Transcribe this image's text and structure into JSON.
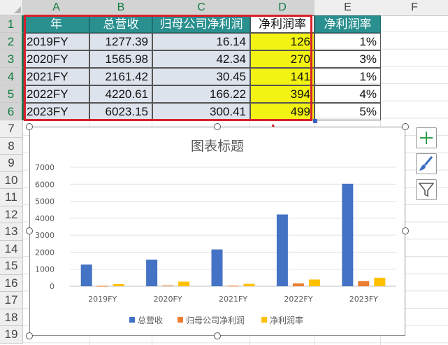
{
  "sheet": {
    "columns": [
      "A",
      "B",
      "C",
      "D",
      "E",
      "F"
    ],
    "rows": [
      "1",
      "2",
      "3",
      "4",
      "5",
      "6",
      "7",
      "8",
      "9",
      "10",
      "11",
      "12",
      "13",
      "14",
      "15",
      "16",
      "17",
      "18",
      "19"
    ],
    "headers": [
      "年",
      "总营收",
      "归母公司净利润",
      "净利润率",
      "净利润率"
    ],
    "table": [
      {
        "year": "2019FY",
        "revenue": "1277.39",
        "profit": "16.14",
        "margin_raw": "126",
        "margin": "1%"
      },
      {
        "year": "2020FY",
        "revenue": "1565.98",
        "profit": "42.34",
        "margin_raw": "270",
        "margin": "3%"
      },
      {
        "year": "2021FY",
        "revenue": "2161.42",
        "profit": "30.45",
        "margin_raw": "141",
        "margin": "1%"
      },
      {
        "year": "2022FY",
        "revenue": "4220.61",
        "profit": "166.22",
        "margin_raw": "394",
        "margin": "4%"
      },
      {
        "year": "2023FY",
        "revenue": "6023.15",
        "profit": "300.41",
        "margin_raw": "499",
        "margin": "5%"
      }
    ]
  },
  "colors": {
    "header_bg": "#2a8f8f",
    "highlight": "#f2f213",
    "selection_outline": "#d9202a",
    "series_revenue": "#4472c4",
    "series_profit": "#ed7d31",
    "series_margin": "#ffc000"
  },
  "icons": {
    "add_element": "plus-icon",
    "style": "brush-icon",
    "filter": "filter-icon"
  },
  "chart_data": {
    "type": "bar",
    "title": "图表标题",
    "categories": [
      "2019FY",
      "2020FY",
      "2021FY",
      "2022FY",
      "2023FY"
    ],
    "series": [
      {
        "name": "总营收",
        "values": [
          1277.39,
          1565.98,
          2161.42,
          4220.61,
          6023.15
        ]
      },
      {
        "name": "归母公司净利润",
        "values": [
          16.14,
          42.34,
          30.45,
          166.22,
          300.41
        ]
      },
      {
        "name": "净利润率",
        "values": [
          126,
          270,
          141,
          394,
          499
        ]
      }
    ],
    "ylim": [
      0,
      7000
    ],
    "yticks": [
      0,
      1000,
      2000,
      3000,
      4000,
      5000,
      6000,
      7000
    ],
    "ytick_labels": [
      "0",
      "1000",
      "2000",
      "3000",
      "4000",
      "5000",
      "6000",
      "7000"
    ],
    "xlabel": "",
    "ylabel": "",
    "legend": "bottom",
    "grid": true
  }
}
